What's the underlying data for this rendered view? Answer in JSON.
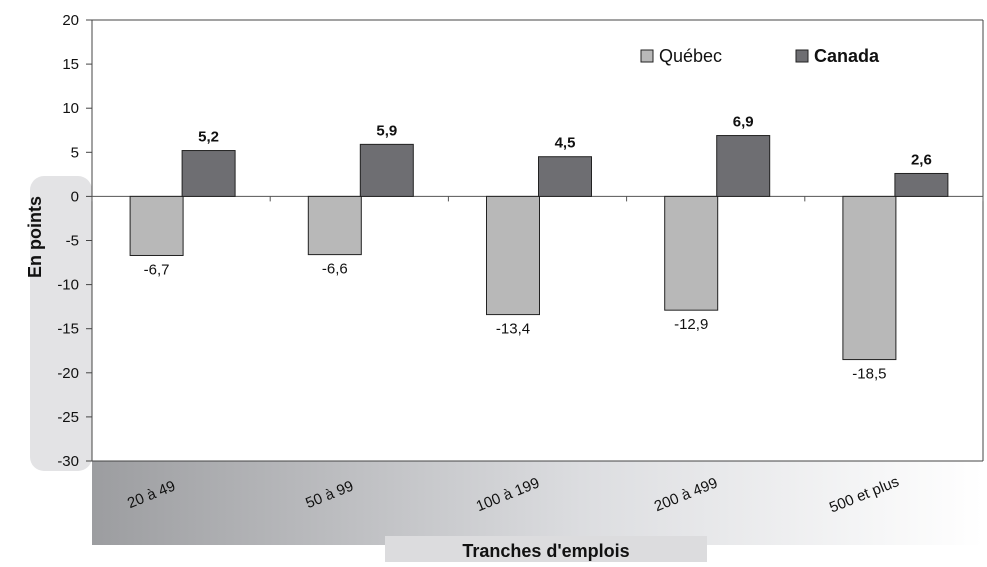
{
  "chart_data": {
    "type": "bar",
    "title": "",
    "xlabel": "Tranches d'emplois",
    "ylabel": "En points",
    "ylim": [
      -30,
      20
    ],
    "yticks": [
      20,
      15,
      10,
      5,
      0,
      -5,
      -10,
      -15,
      -20,
      -25,
      -30
    ],
    "grid": false,
    "legend_position": "top-right",
    "categories": [
      "20 à 49",
      "50 à 99",
      "100 à 199",
      "200 à 499",
      "500 et plus"
    ],
    "series": [
      {
        "name": "Québec",
        "color": "#b8b8b8",
        "values": [
          -6.7,
          -6.6,
          -13.4,
          -12.9,
          -18.5
        ],
        "value_labels": [
          "-6,7",
          "-6,6",
          "-13,4",
          "-12,9",
          "-18,5"
        ]
      },
      {
        "name": "Canada",
        "color": "#6e6e72",
        "values": [
          5.2,
          5.9,
          4.5,
          6.9,
          2.6
        ],
        "value_labels": [
          "5,2",
          "5,9",
          "4,5",
          "6,9",
          "2,6"
        ]
      }
    ]
  }
}
